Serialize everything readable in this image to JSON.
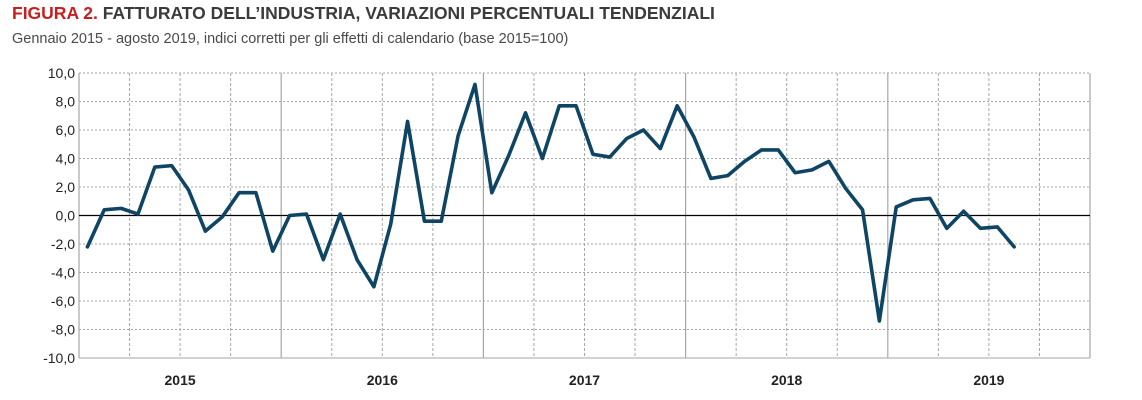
{
  "figure": {
    "title_prefix": "FIGURA 2.",
    "title_text": " FATTURATO DELL’INDUSTRIA, VARIAZIONI PERCENTUALI TENDENZIALI",
    "subtitle": "Gennaio 2015 - agosto 2019, indici corretti per gli effetti di calendario (base 2015=100)"
  },
  "colors": {
    "line": "#0e4565",
    "title_accent": "#c81e1e",
    "grid": "#a6a6a6",
    "zero_line": "#000000"
  },
  "chart_data": {
    "type": "line",
    "title": "FIGURA 2. FATTURATO DELL’INDUSTRIA, VARIAZIONI PERCENTUALI TENDENZIALI",
    "subtitle": "Gennaio 2015 - agosto 2019, indici corretti per gli effetti di calendario (base 2015=100)",
    "xlabel": "",
    "ylabel": "",
    "ylim": [
      -10,
      10
    ],
    "ytick_step": 2,
    "ytick_labels": [
      "10,0",
      "8,0",
      "6,0",
      "4,0",
      "2,0",
      "0,0",
      "-2,0",
      "-4,0",
      "-6,0",
      "-8,0",
      "-10,0"
    ],
    "year_labels": [
      "2015",
      "2016",
      "2017",
      "2018",
      "2019"
    ],
    "grid": "vertical dashed at quarters, solid at year boundaries",
    "x_start": "2015-01",
    "x_end": "2019-08",
    "series": [
      {
        "values": [
          -2.2,
          0.4,
          0.5,
          0.1,
          3.4,
          3.5,
          1.8,
          -1.1,
          -0.1,
          1.6,
          1.6,
          -2.5,
          0.0,
          0.1,
          -3.1,
          0.1,
          -3.1,
          -5.0,
          -0.6,
          6.6,
          -0.4,
          -0.4,
          5.6,
          9.2,
          1.6,
          4.2,
          7.2,
          4.0,
          7.7,
          7.7,
          4.3,
          4.1,
          5.4,
          6.0,
          4.7,
          7.7,
          5.5,
          2.6,
          2.8,
          3.8,
          4.6,
          4.6,
          3.0,
          3.2,
          3.8,
          1.9,
          0.4,
          -7.4,
          0.6,
          1.1,
          1.2,
          -0.9,
          0.3,
          -0.9,
          -0.8,
          -2.2
        ]
      }
    ]
  }
}
